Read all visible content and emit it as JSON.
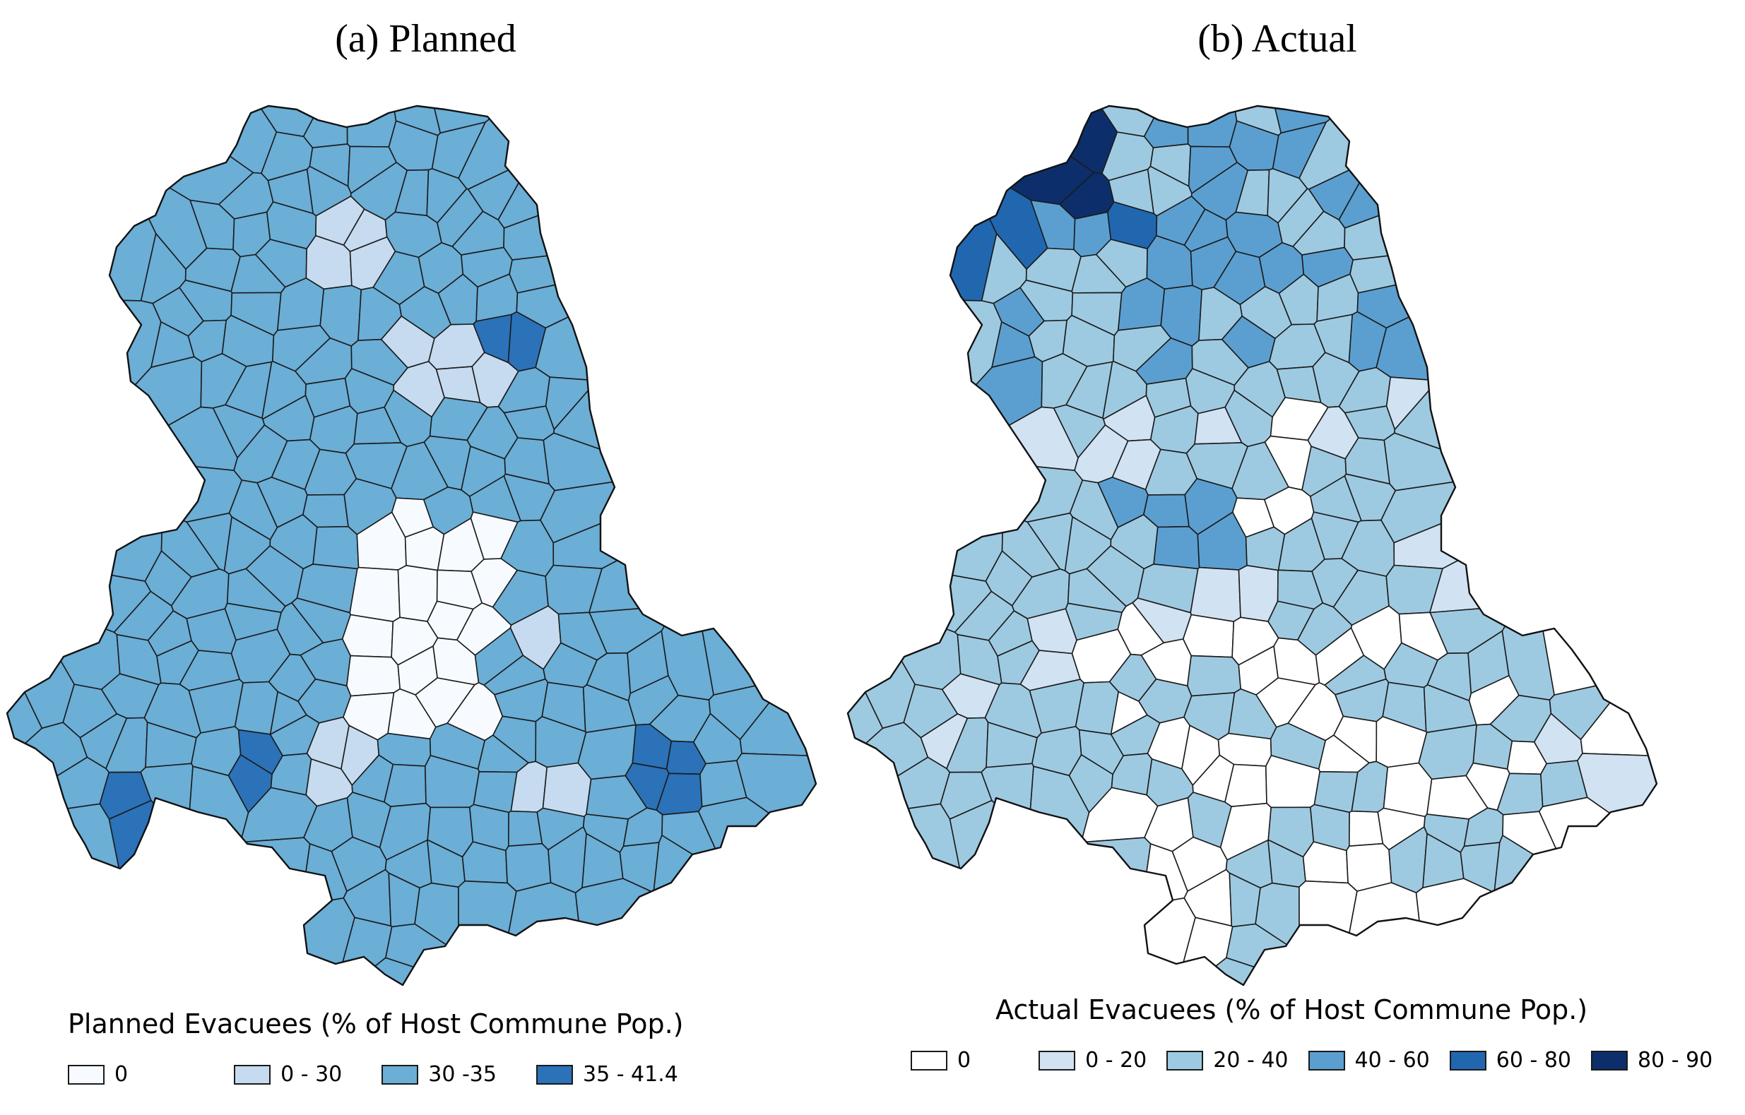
{
  "panels": [
    {
      "id": "planned",
      "title": "(a) Planned",
      "legend_title": "Planned Evacuees (% of Host Commune Pop.)",
      "legend": [
        {
          "label": "0",
          "color": "#f7fbff"
        },
        {
          "label": "0 - 30",
          "color": "#c6dbef"
        },
        {
          "label": "30 -35",
          "color": "#6baed6"
        },
        {
          "label": "35 - 41.4",
          "color": "#2b72b8"
        }
      ]
    },
    {
      "id": "actual",
      "title": "(b) Actual",
      "legend_title": "Actual Evacuees (% of Host Commune Pop.)",
      "legend": [
        {
          "label": "0",
          "color": "#ffffff"
        },
        {
          "label": "0 - 20",
          "color": "#d1e2f2"
        },
        {
          "label": "20 - 40",
          "color": "#9ecae1"
        },
        {
          "label": "40 - 60",
          "color": "#5b9fd0"
        },
        {
          "label": "60 - 80",
          "color": "#2167b0"
        },
        {
          "label": "80 - 90",
          "color": "#0c2f6b"
        }
      ]
    }
  ]
}
